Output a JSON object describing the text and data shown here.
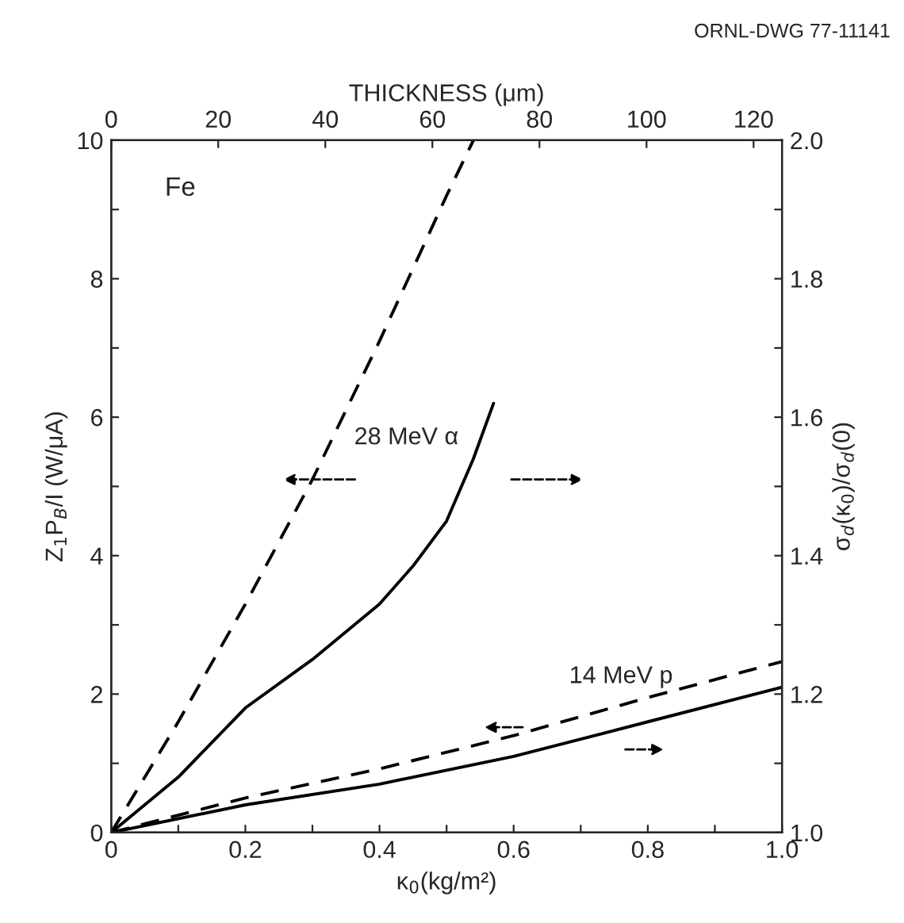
{
  "chart_data": {
    "type": "line",
    "xlabel": "κ$_{0}$(kg/m²)",
    "ylabel": "Z$_{1}$P$_{B}$/I (W/μA)",
    "y2label": "σ$_{d}$(κ$_{0}$)/σ$_{d}$(0)",
    "x2label": "THICKNESS (μm)",
    "xlim": [
      0,
      1.0
    ],
    "xticks": [
      0,
      {
        "value": 0.1,
        "label": null
      },
      {
        "value": 0.2,
        "label": "0.2"
      },
      {
        "value": 0.3,
        "label": null
      },
      {
        "value": 0.4,
        "label": "0.4"
      },
      {
        "value": 0.5,
        "label": null
      },
      {
        "value": 0.6,
        "label": "0.6"
      },
      {
        "value": 0.7,
        "label": null
      },
      {
        "value": 0.8,
        "label": "0.8"
      },
      {
        "value": 0.9,
        "label": null
      },
      {
        "value": 1.0,
        "label": "1.0"
      }
    ],
    "x2lim": [
      0,
      125.3
    ],
    "x2ticks": [
      0,
      20,
      40,
      60,
      80,
      100,
      120
    ],
    "ylim": [
      0,
      10
    ],
    "yticks": [
      0,
      {
        "value": 1,
        "label": null
      },
      2,
      {
        "value": 3,
        "label": null
      },
      4,
      {
        "value": 5,
        "label": null
      },
      6,
      {
        "value": 7,
        "label": null
      },
      8,
      {
        "value": 9,
        "label": null
      },
      10
    ],
    "y2lim": [
      1.0,
      2.0
    ],
    "y2ticks": [
      {
        "value": 1.0,
        "label": "1.0"
      },
      {
        "value": 1.1,
        "label": null
      },
      {
        "value": 1.2,
        "label": "1.2"
      },
      {
        "value": 1.3,
        "label": null
      },
      {
        "value": 1.4,
        "label": "1.4"
      },
      {
        "value": 1.5,
        "label": null
      },
      {
        "value": 1.6,
        "label": "1.6"
      },
      {
        "value": 1.7,
        "label": null
      },
      {
        "value": 1.8,
        "label": "1.8"
      },
      {
        "value": 1.9,
        "label": null
      },
      {
        "value": 2.0,
        "label": "2.0"
      }
    ],
    "grid": false,
    "marker": "none",
    "series": [
      {
        "color": "#000000",
        "line_style": "dashed",
        "axis": "y",
        "x": [
          0,
          0.1,
          0.2,
          0.3,
          0.4,
          0.5,
          0.54
        ],
        "values": [
          0,
          1.6,
          3.3,
          5.1,
          7.1,
          9.2,
          10
        ]
      },
      {
        "color": "#000000",
        "line_style": "solid",
        "axis": "y2",
        "x": [
          0,
          0.1,
          0.2,
          0.3,
          0.35,
          0.4,
          0.45,
          0.5,
          0.54,
          0.57
        ],
        "values": [
          1.0,
          1.08,
          1.18,
          1.25,
          1.29,
          1.33,
          1.385,
          1.45,
          1.54,
          1.62
        ]
      },
      {
        "color": "#000000",
        "line_style": "dashed",
        "axis": "y",
        "x": [
          0,
          0.2,
          0.4,
          0.6,
          0.8,
          1.0
        ],
        "values": [
          0,
          0.5,
          0.92,
          1.4,
          1.95,
          2.47
        ]
      },
      {
        "color": "#000000",
        "line_style": "solid",
        "axis": "y2",
        "x": [
          0,
          0.2,
          0.4,
          0.6,
          0.8,
          1.0
        ],
        "values": [
          1.0,
          1.04,
          1.07,
          1.11,
          1.16,
          1.21
        ]
      }
    ],
    "annotations": [
      "28 MeV α",
      "14 MeV p",
      "Fe",
      "ORNL-DWG 77-11141"
    ]
  }
}
